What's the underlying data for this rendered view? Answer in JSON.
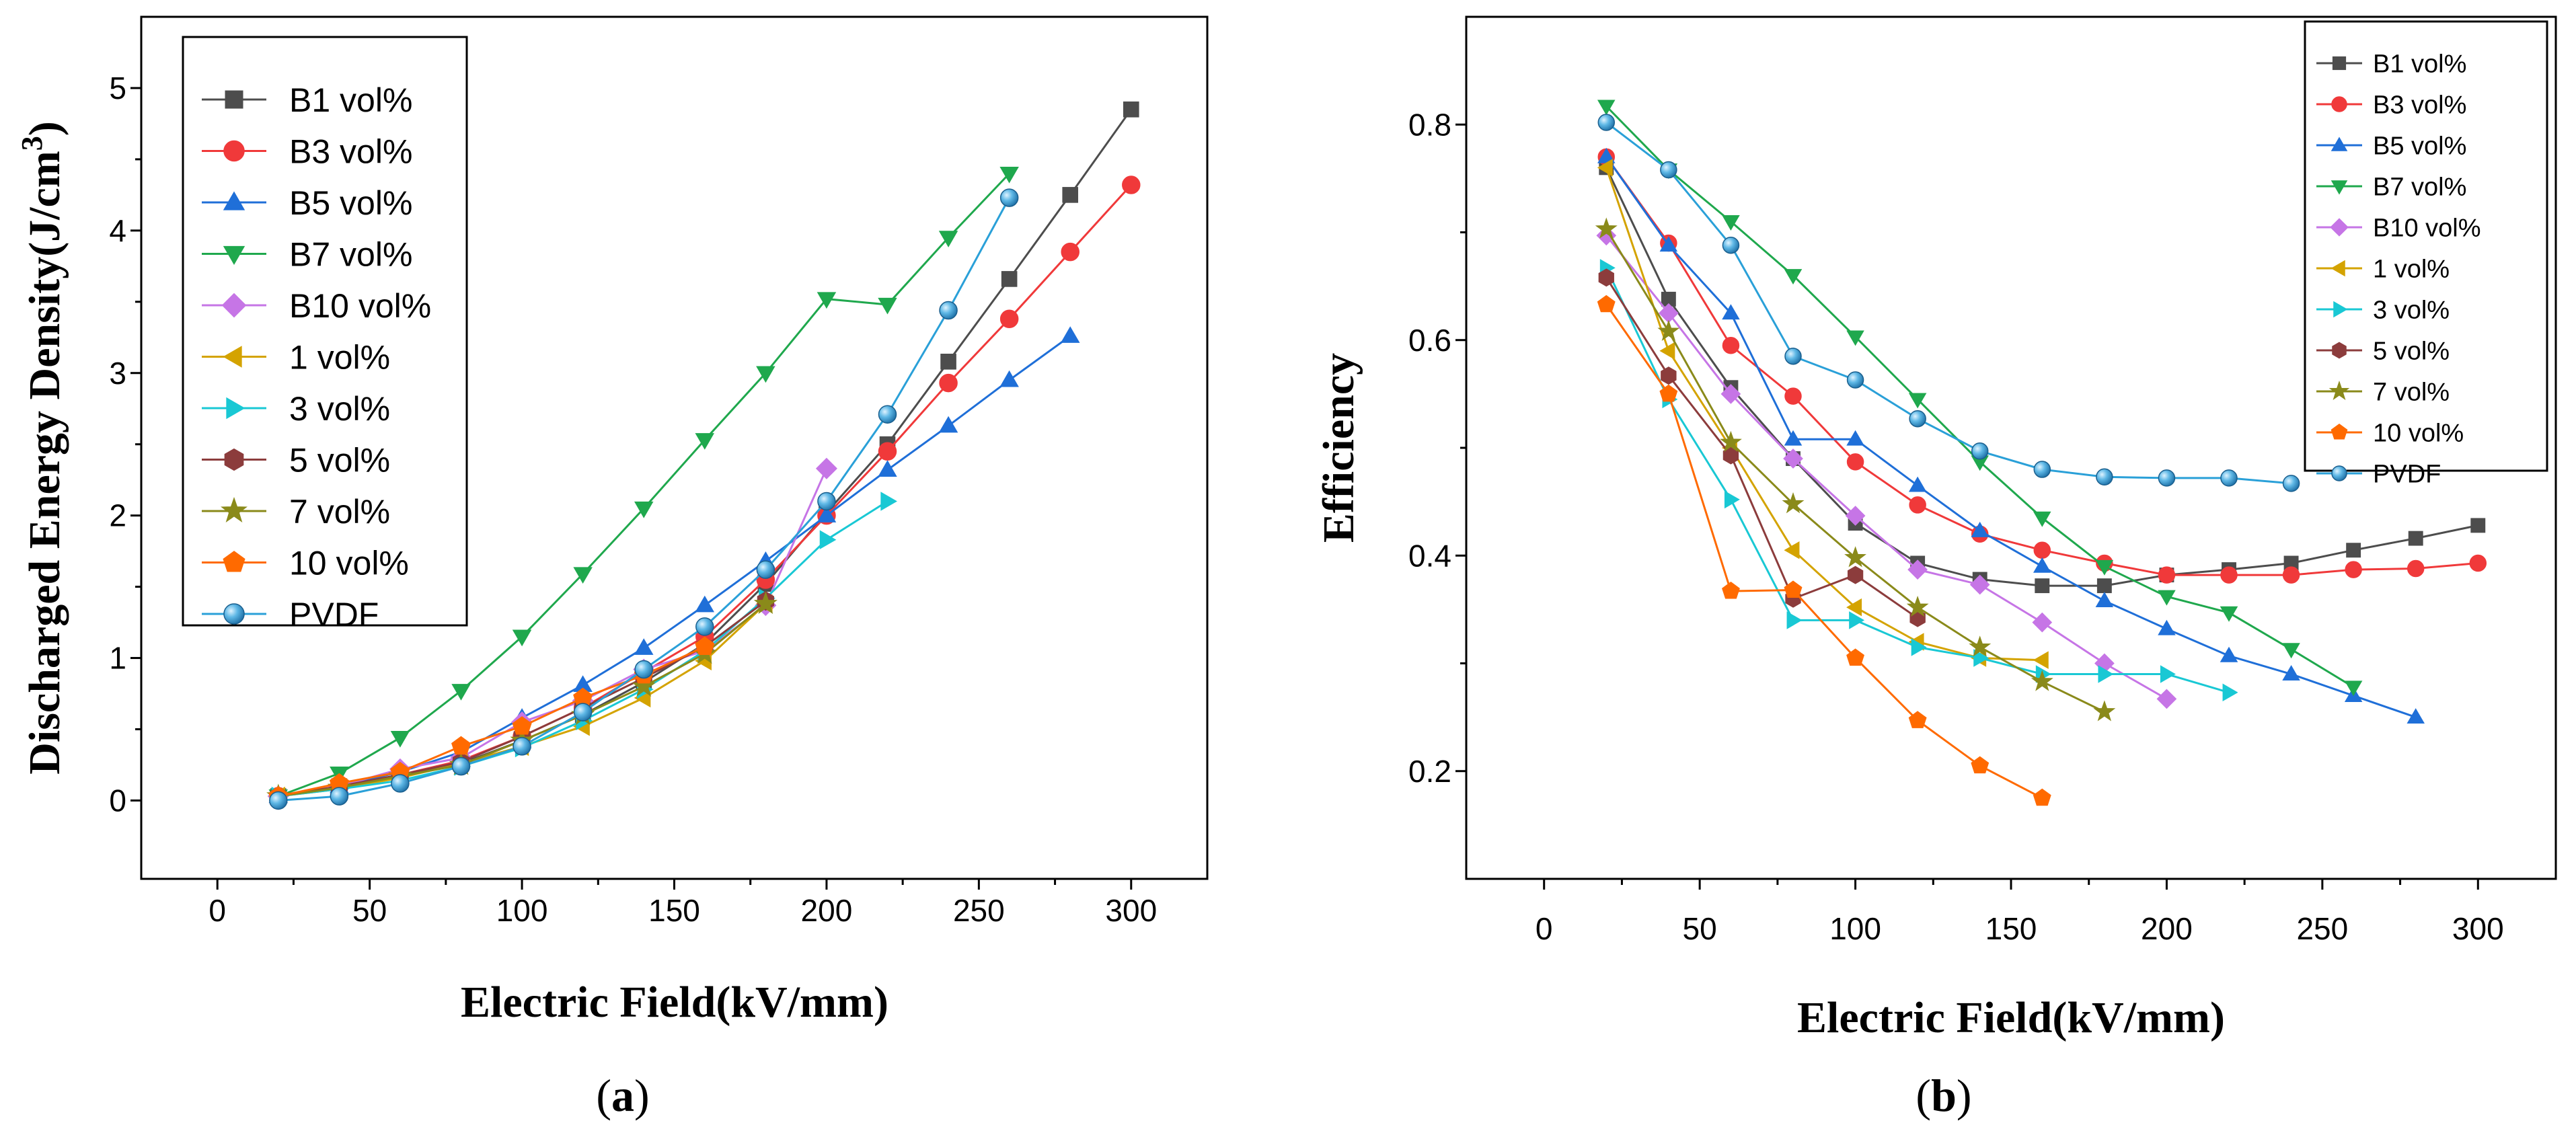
{
  "figure": {
    "panel_a_label": [
      "(",
      "a",
      ")"
    ],
    "panel_b_label": [
      "(",
      "b",
      ")"
    ]
  },
  "chart_data": [
    {
      "type": "line",
      "panel": "a",
      "title": "",
      "xlabel": "Electric Field(kV/mm)",
      "ylabel": "Discharged Energy Density(J/cm³)",
      "xlim": [
        -25,
        325
      ],
      "ylim": [
        -0.55,
        5.5
      ],
      "xticks": [
        0,
        50,
        100,
        150,
        200,
        250,
        300
      ],
      "yticks": [
        0,
        1,
        2,
        3,
        4,
        5
      ],
      "grid": false,
      "legend_position": "top-left",
      "series": [
        {
          "name": "B1 vol%",
          "color": "#4d4d4d",
          "marker": "square",
          "x": [
            20,
            40,
            60,
            80,
            100,
            120,
            140,
            160,
            180,
            200,
            220,
            240,
            260,
            280,
            300
          ],
          "y": [
            0.03,
            0.1,
            0.17,
            0.26,
            0.42,
            0.6,
            0.83,
            1.1,
            1.52,
            2.02,
            2.5,
            3.08,
            3.66,
            4.25,
            4.85
          ]
        },
        {
          "name": "B3 vol%",
          "color": "#f0393a",
          "marker": "circle",
          "x": [
            20,
            40,
            60,
            80,
            100,
            120,
            140,
            160,
            180,
            200,
            220,
            240,
            260,
            280,
            300
          ],
          "y": [
            0.03,
            0.1,
            0.18,
            0.28,
            0.45,
            0.65,
            0.9,
            1.15,
            1.55,
            2.0,
            2.45,
            2.93,
            3.38,
            3.85,
            4.32
          ]
        },
        {
          "name": "B5 vol%",
          "color": "#1f6fd8",
          "marker": "triangle-up",
          "x": [
            20,
            40,
            60,
            80,
            100,
            120,
            140,
            160,
            180,
            200,
            220,
            240,
            260,
            280
          ],
          "y": [
            0.03,
            0.1,
            0.2,
            0.34,
            0.58,
            0.81,
            1.07,
            1.37,
            1.68,
            2.0,
            2.32,
            2.63,
            2.95,
            3.26
          ]
        },
        {
          "name": "B7 vol%",
          "color": "#1fa84d",
          "marker": "triangle-down",
          "x": [
            20,
            40,
            60,
            80,
            100,
            120,
            140,
            160,
            180,
            200,
            220,
            240,
            260
          ],
          "y": [
            0.03,
            0.19,
            0.44,
            0.77,
            1.15,
            1.59,
            2.05,
            2.53,
            3.0,
            3.52,
            3.48,
            3.95,
            4.4
          ]
        },
        {
          "name": "B10 vol%",
          "color": "#c675e6",
          "marker": "diamond",
          "x": [
            20,
            40,
            60,
            80,
            100,
            120,
            140,
            160,
            180,
            200
          ],
          "y": [
            0.03,
            0.1,
            0.22,
            0.3,
            0.55,
            0.7,
            0.92,
            1.05,
            1.37,
            2.33
          ]
        },
        {
          "name": "1 vol%",
          "color": "#d4a300",
          "marker": "triangle-left",
          "x": [
            20,
            40,
            60,
            80,
            100,
            120,
            140,
            160,
            180
          ],
          "y": [
            0.03,
            0.08,
            0.16,
            0.26,
            0.38,
            0.52,
            0.72,
            0.98,
            1.38
          ]
        },
        {
          "name": "3 vol%",
          "color": "#19c8d4",
          "marker": "triangle-right",
          "x": [
            20,
            40,
            60,
            80,
            100,
            120,
            140,
            160,
            180,
            200,
            220
          ],
          "y": [
            0.03,
            0.08,
            0.14,
            0.24,
            0.37,
            0.56,
            0.78,
            1.05,
            1.42,
            1.83,
            2.1
          ]
        },
        {
          "name": "5 vol%",
          "color": "#8c3c3c",
          "marker": "hexagon",
          "x": [
            20,
            40,
            60,
            80,
            100,
            120,
            140,
            160,
            180
          ],
          "y": [
            0.03,
            0.1,
            0.18,
            0.27,
            0.45,
            0.65,
            0.86,
            1.08,
            1.4
          ]
        },
        {
          "name": "7 vol%",
          "color": "#8a8a1a",
          "marker": "star",
          "x": [
            20,
            40,
            60,
            80,
            100,
            120,
            140,
            160,
            180
          ],
          "y": [
            0.03,
            0.09,
            0.17,
            0.25,
            0.42,
            0.6,
            0.8,
            1.03,
            1.38
          ]
        },
        {
          "name": "10 vol%",
          "color": "#ff6a00",
          "marker": "pentagon",
          "x": [
            20,
            40,
            60,
            80,
            100,
            120,
            140,
            160
          ],
          "y": [
            0.03,
            0.12,
            0.2,
            0.38,
            0.52,
            0.72,
            0.88,
            1.08
          ]
        },
        {
          "name": "PVDF",
          "color": "#2aa0d8",
          "marker": "sphere",
          "x": [
            20,
            40,
            60,
            80,
            100,
            120,
            140,
            160,
            180,
            200,
            220,
            240,
            260
          ],
          "y": [
            0.0,
            0.03,
            0.12,
            0.24,
            0.38,
            0.62,
            0.92,
            1.22,
            1.62,
            2.1,
            2.71,
            3.44,
            4.23
          ]
        }
      ]
    },
    {
      "type": "line",
      "panel": "b",
      "title": "",
      "xlabel": "Electric Field(kV/mm)",
      "ylabel": "Efficiency",
      "xlim": [
        -25,
        325
      ],
      "ylim": [
        0.1,
        0.9
      ],
      "xticks": [
        0,
        50,
        100,
        150,
        200,
        250,
        300
      ],
      "yticks": [
        0.2,
        0.4,
        0.6,
        0.8
      ],
      "grid": false,
      "legend_position": "top-right",
      "series": [
        {
          "name": "B1 vol%",
          "color": "#4d4d4d",
          "marker": "square",
          "x": [
            20,
            40,
            60,
            80,
            100,
            120,
            140,
            160,
            180,
            200,
            220,
            240,
            260,
            280,
            300
          ],
          "y": [
            0.76,
            0.638,
            0.556,
            0.49,
            0.43,
            0.393,
            0.378,
            0.372,
            0.372,
            0.382,
            0.387,
            0.393,
            0.405,
            0.416,
            0.428
          ]
        },
        {
          "name": "B3 vol%",
          "color": "#f0393a",
          "marker": "circle",
          "x": [
            20,
            40,
            60,
            80,
            100,
            120,
            140,
            160,
            180,
            200,
            220,
            240,
            260,
            280,
            300
          ],
          "y": [
            0.77,
            0.69,
            0.595,
            0.548,
            0.487,
            0.447,
            0.42,
            0.405,
            0.393,
            0.382,
            0.382,
            0.382,
            0.387,
            0.388,
            0.393
          ]
        },
        {
          "name": "B5 vol%",
          "color": "#1f6fd8",
          "marker": "triangle-up",
          "x": [
            20,
            40,
            60,
            80,
            100,
            120,
            140,
            160,
            180,
            200,
            220,
            240,
            260,
            280
          ],
          "y": [
            0.77,
            0.688,
            0.625,
            0.508,
            0.508,
            0.465,
            0.423,
            0.39,
            0.358,
            0.332,
            0.307,
            0.29,
            0.27,
            0.25
          ]
        },
        {
          "name": "B7 vol%",
          "color": "#1fa84d",
          "marker": "triangle-down",
          "x": [
            20,
            40,
            60,
            80,
            100,
            120,
            140,
            160,
            180,
            200,
            220,
            240,
            260
          ],
          "y": [
            0.817,
            0.758,
            0.71,
            0.66,
            0.603,
            0.545,
            0.487,
            0.435,
            0.39,
            0.362,
            0.347,
            0.313,
            0.278
          ]
        },
        {
          "name": "B10 vol%",
          "color": "#c675e6",
          "marker": "diamond",
          "x": [
            20,
            40,
            60,
            80,
            100,
            120,
            140,
            160,
            180,
            200
          ],
          "y": [
            0.697,
            0.625,
            0.55,
            0.49,
            0.437,
            0.387,
            0.373,
            0.338,
            0.3,
            0.267
          ]
        },
        {
          "name": "1 vol%",
          "color": "#d4a300",
          "marker": "triangle-left",
          "x": [
            20,
            40,
            60,
            80,
            100,
            120,
            140,
            160
          ],
          "y": [
            0.76,
            0.59,
            0.5,
            0.405,
            0.352,
            0.32,
            0.305,
            0.303
          ]
        },
        {
          "name": "3 vol%",
          "color": "#19c8d4",
          "marker": "triangle-right",
          "x": [
            20,
            40,
            60,
            80,
            100,
            120,
            140,
            160,
            180,
            200,
            220
          ],
          "y": [
            0.667,
            0.545,
            0.452,
            0.34,
            0.34,
            0.315,
            0.305,
            0.29,
            0.29,
            0.29,
            0.273
          ]
        },
        {
          "name": "5 vol%",
          "color": "#8c3c3c",
          "marker": "hexagon",
          "x": [
            20,
            40,
            60,
            80,
            100,
            120
          ],
          "y": [
            0.658,
            0.567,
            0.493,
            0.36,
            0.382,
            0.342
          ]
        },
        {
          "name": "7 vol%",
          "color": "#8a8a1a",
          "marker": "star",
          "x": [
            20,
            40,
            60,
            80,
            100,
            120,
            140,
            160,
            180
          ],
          "y": [
            0.703,
            0.608,
            0.505,
            0.448,
            0.398,
            0.352,
            0.315,
            0.283,
            0.255
          ]
        },
        {
          "name": "10 vol%",
          "color": "#ff6a00",
          "marker": "pentagon",
          "x": [
            20,
            40,
            60,
            80,
            100,
            120,
            140,
            160
          ],
          "y": [
            0.633,
            0.55,
            0.367,
            0.368,
            0.305,
            0.247,
            0.205,
            0.175
          ]
        },
        {
          "name": "PVDF",
          "color": "#2aa0d8",
          "marker": "sphere",
          "x": [
            20,
            40,
            60,
            80,
            100,
            120,
            140,
            160,
            180,
            200,
            220,
            240
          ],
          "y": [
            0.802,
            0.758,
            0.688,
            0.585,
            0.563,
            0.527,
            0.497,
            0.48,
            0.473,
            0.472,
            0.472,
            0.467
          ]
        }
      ]
    }
  ]
}
